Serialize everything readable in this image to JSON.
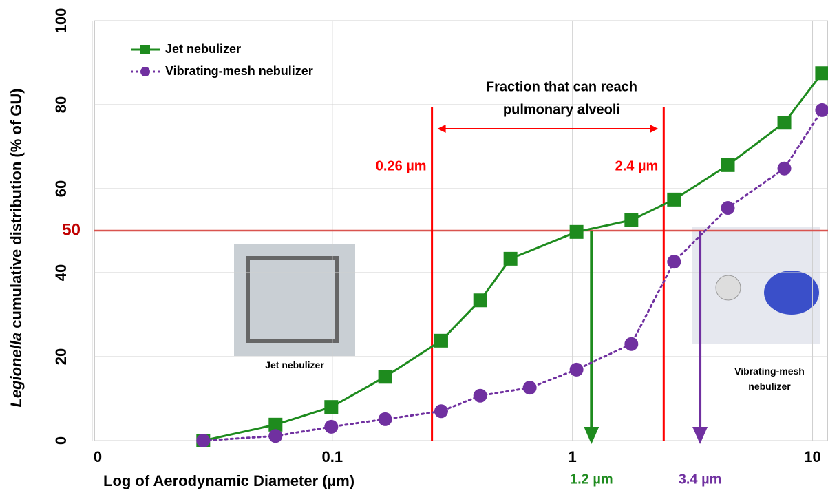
{
  "chart_data": {
    "type": "line",
    "ylabel": {
      "italic": "Legionella",
      "text": " cumulative distribution (% of GU)"
    },
    "xlabel": "Log of Aerodynamic Diameter (µm)",
    "xscale": "log",
    "xlim": [
      0.01,
      11.6
    ],
    "xticks": [
      {
        "value": 0.01,
        "label": "0"
      },
      0.1,
      1,
      10
    ],
    "ylim": [
      0,
      100
    ],
    "yticks": [
      0,
      20,
      40,
      60,
      80,
      100
    ],
    "grid": true,
    "legend": "upper left",
    "series": [
      {
        "name": "Jet nebulizer",
        "color": "#1e8b1e",
        "marker": "square",
        "dash": "solid",
        "x": [
          0.029,
          0.058,
          0.099,
          0.166,
          0.284,
          0.413,
          0.552,
          1.04,
          1.76,
          2.65,
          4.44,
          7.63,
          10.96
        ],
        "values": [
          0,
          3.8,
          8,
          15.2,
          23.8,
          33.4,
          43.3,
          49.7,
          52.5,
          57.4,
          65.6,
          75.7,
          87.5
        ]
      },
      {
        "name": "Vibrating-mesh nebulizer",
        "color": "#7030a0",
        "marker": "circle",
        "dash": "dotted",
        "x": [
          0.029,
          0.058,
          0.099,
          0.166,
          0.284,
          0.413,
          0.664,
          1.04,
          1.76,
          2.65,
          4.44,
          7.63,
          10.96
        ],
        "values": [
          0,
          1.1,
          3.3,
          5.1,
          7,
          10.7,
          12.6,
          16.9,
          23,
          42.6,
          55.4,
          64.8,
          78.7
        ]
      }
    ],
    "hline": {
      "value": 50,
      "label": "50",
      "color": "#d9534f"
    },
    "vlines": [
      {
        "value": 0.26,
        "label": "0.26 µm",
        "color": "#ff0000"
      },
      {
        "value": 2.4,
        "label": "2.4 µm",
        "color": "#ff0000"
      }
    ],
    "arrows": [
      {
        "value": 1.2,
        "label": "1.2 µm",
        "color": "#1e8b1e"
      },
      {
        "value": 3.4,
        "label": "3.4 µm",
        "color": "#7030a0"
      }
    ],
    "annotation": [
      "Fraction that can reach",
      "pulmonary alveoli"
    ],
    "images": [
      {
        "caption": "Jet nebulizer"
      },
      {
        "caption": "Vibrating-mesh nebulizer"
      }
    ]
  }
}
